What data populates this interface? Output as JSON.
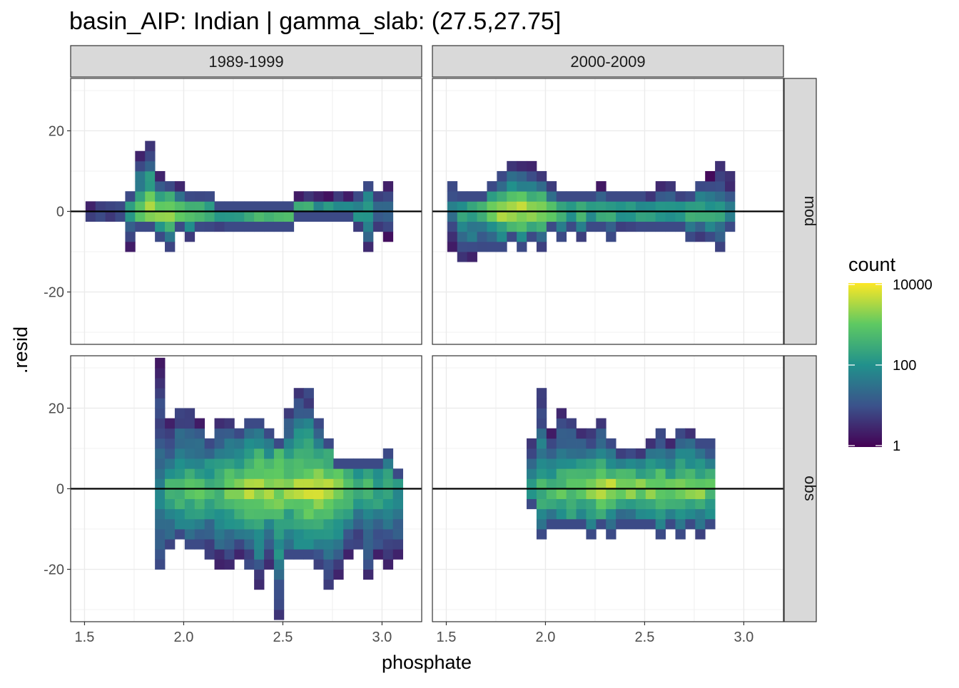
{
  "title": "basin_AIP: Indian | gamma_slab: (27.5,27.75]",
  "chart_data": {
    "type": "heatmap",
    "title": "basin_AIP: Indian | gamma_slab: (27.5,27.75]",
    "xlabel": "phosphate",
    "ylabel": ".resid",
    "xlim": [
      1.43,
      3.2
    ],
    "ylim": [
      -33,
      33
    ],
    "x_ticks": [
      "1.5",
      "2.0",
      "2.5",
      "3.0"
    ],
    "x_tick_values": [
      1.5,
      2.0,
      2.5,
      3.0
    ],
    "y_ticks": [
      "-20",
      "0",
      "20"
    ],
    "y_tick_values": [
      -20,
      0,
      20
    ],
    "reference_line_y": 0,
    "column_facets": [
      "1989-1999",
      "2000-2009"
    ],
    "row_facets": [
      "mod",
      "obs"
    ],
    "bin_width_x": 0.05,
    "bin_width_y": 2.5,
    "fill_scale": "log10 count, viridis",
    "legend": {
      "title": "count",
      "labels": [
        "10000",
        "100",
        "1"
      ],
      "values": [
        10000,
        100,
        1
      ],
      "placement": "right",
      "colors": [
        "#440154",
        "#3b528b",
        "#21918c",
        "#5ec962",
        "#fde725"
      ]
    },
    "panels": [
      {
        "col": "1989-1999",
        "row": "mod",
        "columns": [
          {
            "x": 1.53,
            "min": -2.5,
            "max": 1.25,
            "peak": 1.3
          },
          {
            "x": 1.58,
            "min": -2.5,
            "max": 1.25,
            "peak": 1.6
          },
          {
            "x": 1.63,
            "min": -2.5,
            "max": 1.25,
            "peak": 1.2
          },
          {
            "x": 1.68,
            "min": -2.5,
            "max": 1.25,
            "peak": 1.4
          },
          {
            "x": 1.73,
            "min": -10,
            "max": 3.75,
            "peak": 2.3
          },
          {
            "x": 1.78,
            "min": -5,
            "max": 13.75,
            "peak": 3.2
          },
          {
            "x": 1.83,
            "min": -5,
            "max": 16.25,
            "peak": 3.8
          },
          {
            "x": 1.88,
            "min": -7.5,
            "max": 8.75,
            "peak": 3.6
          },
          {
            "x": 1.93,
            "min": -10,
            "max": 6.25,
            "peak": 3.7
          },
          {
            "x": 1.98,
            "min": -5,
            "max": 6.25,
            "peak": 3.7
          },
          {
            "x": 2.03,
            "min": -7.5,
            "max": 3.75,
            "peak": 3.4
          },
          {
            "x": 2.08,
            "min": -5,
            "max": 3.75,
            "peak": 3.2
          },
          {
            "x": 2.13,
            "min": -5,
            "max": 3.75,
            "peak": 3.0
          },
          {
            "x": 2.18,
            "min": -5,
            "max": 1.25,
            "peak": 3.0
          },
          {
            "x": 2.23,
            "min": -5,
            "max": 1.25,
            "peak": 3.0
          },
          {
            "x": 2.28,
            "min": -5,
            "max": 1.25,
            "peak": 3.1
          },
          {
            "x": 2.33,
            "min": -5,
            "max": 1.25,
            "peak": 3.2
          },
          {
            "x": 2.38,
            "min": -5,
            "max": 1.25,
            "peak": 3.3
          },
          {
            "x": 2.43,
            "min": -5,
            "max": 1.25,
            "peak": 3.3
          },
          {
            "x": 2.48,
            "min": -5,
            "max": 1.25,
            "peak": 3.4
          },
          {
            "x": 2.53,
            "min": -5,
            "max": 1.25,
            "peak": 3.6
          },
          {
            "x": 2.58,
            "min": -2.5,
            "max": 3.75,
            "peak": 3.8
          },
          {
            "x": 2.63,
            "min": -2.5,
            "max": 3.75,
            "peak": 3.9
          },
          {
            "x": 2.68,
            "min": -2.5,
            "max": 3.75,
            "peak": 3.0
          },
          {
            "x": 2.73,
            "min": -2.5,
            "max": 3.75,
            "peak": 2.8
          },
          {
            "x": 2.78,
            "min": -2.5,
            "max": 3.75,
            "peak": 2.8
          },
          {
            "x": 2.83,
            "min": -2.5,
            "max": 3.75,
            "peak": 2.7
          },
          {
            "x": 2.88,
            "min": -5,
            "max": 3.75,
            "peak": 2.6
          },
          {
            "x": 2.93,
            "min": -10,
            "max": 6.25,
            "peak": 2.5
          },
          {
            "x": 2.98,
            "min": -5,
            "max": 3.75,
            "peak": 1.8
          },
          {
            "x": 3.03,
            "min": -7.5,
            "max": 6.25,
            "peak": 1.4
          }
        ]
      },
      {
        "col": "2000-2009",
        "row": "mod",
        "columns": [
          {
            "x": 1.53,
            "min": -10,
            "max": 6.25,
            "peak": 1.8
          },
          {
            "x": 1.58,
            "min": -12.5,
            "max": 3.75,
            "peak": 2.4
          },
          {
            "x": 1.63,
            "min": -12.5,
            "max": 3.75,
            "peak": 2.6
          },
          {
            "x": 1.68,
            "min": -10,
            "max": 3.75,
            "peak": 2.9
          },
          {
            "x": 1.73,
            "min": -10,
            "max": 6.25,
            "peak": 3.4
          },
          {
            "x": 1.78,
            "min": -10,
            "max": 8.75,
            "peak": 3.8
          },
          {
            "x": 1.83,
            "min": -7.5,
            "max": 11.25,
            "peak": 4.0
          },
          {
            "x": 1.88,
            "min": -10,
            "max": 11.25,
            "peak": 3.9
          },
          {
            "x": 1.93,
            "min": -7.5,
            "max": 11.25,
            "peak": 3.8
          },
          {
            "x": 1.98,
            "min": -10,
            "max": 8.75,
            "peak": 3.6
          },
          {
            "x": 2.03,
            "min": -5,
            "max": 6.25,
            "peak": 3.4
          },
          {
            "x": 2.08,
            "min": -7.5,
            "max": 3.75,
            "peak": 3.0
          },
          {
            "x": 2.13,
            "min": -5,
            "max": 3.75,
            "peak": 2.9
          },
          {
            "x": 2.18,
            "min": -7.5,
            "max": 3.75,
            "peak": 2.9
          },
          {
            "x": 2.23,
            "min": -5,
            "max": 3.75,
            "peak": 2.8
          },
          {
            "x": 2.28,
            "min": -5,
            "max": 6.25,
            "peak": 2.8
          },
          {
            "x": 2.33,
            "min": -7.5,
            "max": 3.75,
            "peak": 2.7
          },
          {
            "x": 2.38,
            "min": -5,
            "max": 3.75,
            "peak": 2.6
          },
          {
            "x": 2.43,
            "min": -5,
            "max": 3.75,
            "peak": 2.7
          },
          {
            "x": 2.48,
            "min": -5,
            "max": 3.75,
            "peak": 2.8
          },
          {
            "x": 2.53,
            "min": -5,
            "max": 3.75,
            "peak": 2.6
          },
          {
            "x": 2.58,
            "min": -5,
            "max": 6.25,
            "peak": 2.9
          },
          {
            "x": 2.63,
            "min": -5,
            "max": 6.25,
            "peak": 2.8
          },
          {
            "x": 2.68,
            "min": -5,
            "max": 3.75,
            "peak": 2.7
          },
          {
            "x": 2.73,
            "min": -7.5,
            "max": 3.75,
            "peak": 2.8
          },
          {
            "x": 2.78,
            "min": -7.5,
            "max": 6.25,
            "peak": 2.7
          },
          {
            "x": 2.83,
            "min": -7.5,
            "max": 8.75,
            "peak": 2.6
          },
          {
            "x": 2.88,
            "min": -10,
            "max": 11.25,
            "peak": 2.4
          },
          {
            "x": 2.93,
            "min": -5,
            "max": 8.75,
            "peak": 2.1
          }
        ]
      },
      {
        "col": "1989-1999",
        "row": "obs",
        "columns": [
          {
            "x": 1.88,
            "min": -20,
            "max": 32.5,
            "peak": 1.8
          },
          {
            "x": 1.93,
            "min": -15,
            "max": 17.5,
            "peak": 2.6
          },
          {
            "x": 1.98,
            "min": -12.5,
            "max": 20,
            "peak": 2.9
          },
          {
            "x": 2.03,
            "min": -15,
            "max": 20,
            "peak": 3.0
          },
          {
            "x": 2.08,
            "min": -15,
            "max": 17.5,
            "peak": 3.0
          },
          {
            "x": 2.13,
            "min": -17.5,
            "max": 12.5,
            "peak": 2.9
          },
          {
            "x": 2.18,
            "min": -20,
            "max": 17.5,
            "peak": 2.8
          },
          {
            "x": 2.23,
            "min": -20,
            "max": 17.5,
            "peak": 3.2
          },
          {
            "x": 2.28,
            "min": -17.5,
            "max": 15,
            "peak": 3.4
          },
          {
            "x": 2.33,
            "min": -20,
            "max": 17.5,
            "peak": 3.6
          },
          {
            "x": 2.38,
            "min": -25,
            "max": 17.5,
            "peak": 3.6
          },
          {
            "x": 2.43,
            "min": -20,
            "max": 15,
            "peak": 3.5
          },
          {
            "x": 2.48,
            "min": -32.5,
            "max": 12.5,
            "peak": 3.4
          },
          {
            "x": 2.53,
            "min": -17.5,
            "max": 20,
            "peak": 3.5
          },
          {
            "x": 2.58,
            "min": -17.5,
            "max": 25,
            "peak": 3.6
          },
          {
            "x": 2.63,
            "min": -17.5,
            "max": 25,
            "peak": 3.7
          },
          {
            "x": 2.68,
            "min": -20,
            "max": 17.5,
            "peak": 3.8
          },
          {
            "x": 2.73,
            "min": -25,
            "max": 12.5,
            "peak": 3.6
          },
          {
            "x": 2.78,
            "min": -22.5,
            "max": 7.5,
            "peak": 3.3
          },
          {
            "x": 2.83,
            "min": -17.5,
            "max": 7.5,
            "peak": 3.0
          },
          {
            "x": 2.88,
            "min": -15,
            "max": 7.5,
            "peak": 2.9
          },
          {
            "x": 2.93,
            "min": -22.5,
            "max": 7.5,
            "peak": 2.7
          },
          {
            "x": 2.98,
            "min": -17.5,
            "max": 7.5,
            "peak": 2.6
          },
          {
            "x": 3.03,
            "min": -20,
            "max": 10,
            "peak": 2.6
          },
          {
            "x": 3.08,
            "min": -17.5,
            "max": 5,
            "peak": 2.2
          }
        ]
      },
      {
        "col": "2000-2009",
        "row": "obs",
        "columns": [
          {
            "x": 1.93,
            "min": -5,
            "max": 12.5,
            "peak": 2.4
          },
          {
            "x": 1.98,
            "min": -12.5,
            "max": 25,
            "peak": 2.6
          },
          {
            "x": 2.03,
            "min": -10,
            "max": 15,
            "peak": 2.8
          },
          {
            "x": 2.08,
            "min": -10,
            "max": 20,
            "peak": 3.0
          },
          {
            "x": 2.13,
            "min": -10,
            "max": 17.5,
            "peak": 3.1
          },
          {
            "x": 2.18,
            "min": -10,
            "max": 15,
            "peak": 3.2
          },
          {
            "x": 2.23,
            "min": -12.5,
            "max": 15,
            "peak": 3.4
          },
          {
            "x": 2.28,
            "min": -10,
            "max": 17.5,
            "peak": 3.6
          },
          {
            "x": 2.33,
            "min": -12.5,
            "max": 12.5,
            "peak": 3.8
          },
          {
            "x": 2.38,
            "min": -10,
            "max": 10,
            "peak": 3.8
          },
          {
            "x": 2.43,
            "min": -10,
            "max": 10,
            "peak": 3.7
          },
          {
            "x": 2.48,
            "min": -10,
            "max": 10,
            "peak": 3.6
          },
          {
            "x": 2.53,
            "min": -10,
            "max": 12.5,
            "peak": 3.5
          },
          {
            "x": 2.58,
            "min": -12.5,
            "max": 15,
            "peak": 3.4
          },
          {
            "x": 2.63,
            "min": -10,
            "max": 12.5,
            "peak": 3.3
          },
          {
            "x": 2.68,
            "min": -12.5,
            "max": 15,
            "peak": 3.3
          },
          {
            "x": 2.73,
            "min": -10,
            "max": 15,
            "peak": 3.4
          },
          {
            "x": 2.78,
            "min": -12.5,
            "max": 12.5,
            "peak": 3.5
          },
          {
            "x": 2.83,
            "min": -10,
            "max": 12.5,
            "peak": 3.1
          }
        ]
      }
    ]
  }
}
